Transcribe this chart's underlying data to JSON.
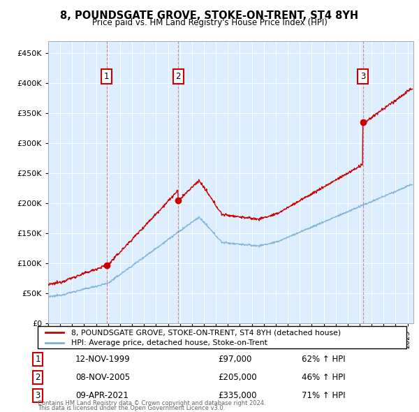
{
  "title": "8, POUNDSGATE GROVE, STOKE-ON-TRENT, ST4 8YH",
  "subtitle": "Price paid vs. HM Land Registry's House Price Index (HPI)",
  "background_color": "#ffffff",
  "plot_bg_color": "#ddeeff",
  "grid_color": "#ffffff",
  "red_line_color": "#cc0000",
  "blue_line_color": "#7ab0d4",
  "ylim": [
    0,
    470000
  ],
  "yticks": [
    0,
    50000,
    100000,
    150000,
    200000,
    250000,
    300000,
    350000,
    400000,
    450000
  ],
  "ytick_labels": [
    "£0",
    "£50K",
    "£100K",
    "£150K",
    "£200K",
    "£250K",
    "£300K",
    "£350K",
    "£400K",
    "£450K"
  ],
  "transactions": [
    {
      "num": 1,
      "date": "12-NOV-1999",
      "price": 97000,
      "year": 1999.87,
      "pct": "62%",
      "dir": "↑"
    },
    {
      "num": 2,
      "date": "08-NOV-2005",
      "price": 205000,
      "year": 2005.86,
      "pct": "46%",
      "dir": "↑"
    },
    {
      "num": 3,
      "date": "09-APR-2021",
      "price": 335000,
      "year": 2021.27,
      "pct": "71%",
      "dir": "↑"
    }
  ],
  "legend_line1": "8, POUNDSGATE GROVE, STOKE-ON-TRENT, ST4 8YH (detached house)",
  "legend_line2": "HPI: Average price, detached house, Stoke-on-Trent",
  "footer1": "Contains HM Land Registry data © Crown copyright and database right 2024.",
  "footer2": "This data is licensed under the Open Government Licence v3.0.",
  "xmin": 1995.0,
  "xmax": 2025.5
}
